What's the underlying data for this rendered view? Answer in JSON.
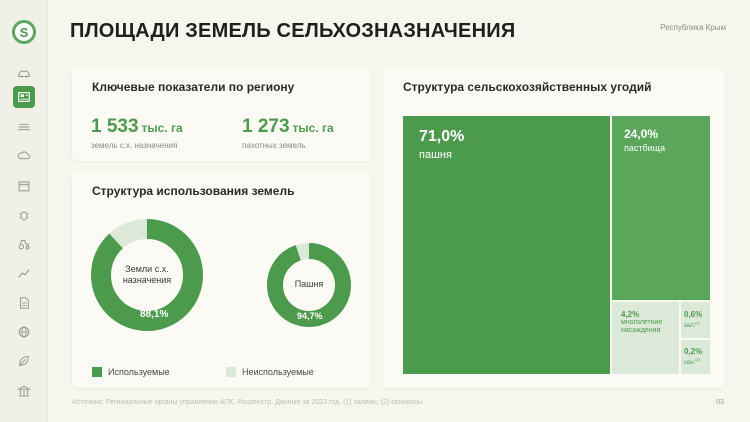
{
  "header": {
    "title": "ПЛОЩАДИ ЗЕМЕЛЬ СЕЛЬХОЗНАЗНАЧЕНИЯ",
    "region": "Республика Крым"
  },
  "sidebar": {
    "logo_letter": "S",
    "items": [
      {
        "icon": "car-icon"
      },
      {
        "icon": "dashboard-icon",
        "active": true
      },
      {
        "icon": "field-icon"
      },
      {
        "icon": "weather-icon"
      },
      {
        "icon": "calendar-icon"
      },
      {
        "icon": "bug-icon"
      },
      {
        "icon": "tractor-icon"
      },
      {
        "icon": "chart-icon"
      },
      {
        "icon": "document-icon"
      },
      {
        "icon": "globe-icon"
      },
      {
        "icon": "leaf-icon"
      },
      {
        "icon": "bank-icon"
      }
    ]
  },
  "kpi_card": {
    "title": "Ключевые показатели по региону",
    "items": [
      {
        "value": "1 533",
        "unit": "тыс. га",
        "label": "земель с.х. назначения"
      },
      {
        "value": "1 273",
        "unit": "тыс. га",
        "label": "пахотных земель"
      }
    ]
  },
  "land_use_card": {
    "title": "Структура использования земель",
    "donuts": [
      {
        "center_label": "Земли с.х. назначения",
        "percent_label": "88,1%",
        "value": 88.1
      },
      {
        "center_label": "Пашня",
        "percent_label": "94,7%",
        "value": 94.7
      }
    ],
    "legend": [
      {
        "label": "Используемые",
        "color": "#4c9b4c"
      },
      {
        "label": "Неиспользуемые",
        "color": "#dce9d9"
      }
    ]
  },
  "structure_card": {
    "title": "Структура сельскохозяйственных угодий",
    "tiles": [
      {
        "pct": "71,0%",
        "label": "пашня",
        "value": 71.0
      },
      {
        "pct": "24,0%",
        "label": "пастбища",
        "value": 24.0
      },
      {
        "pct": "4,2%",
        "label": "многолетние насаждения",
        "value": 4.2
      },
      {
        "pct": "0,6%",
        "label": "зал.",
        "sup": "(1)",
        "value": 0.6
      },
      {
        "pct": "0,2%",
        "label": "сен.",
        "sup": "(2)",
        "value": 0.2
      }
    ]
  },
  "colors": {
    "accent": "#4c9b4c",
    "pasture": "#5aa65a",
    "orchard": "#b8d7b2",
    "light": "#dce9d9",
    "background": "#f7f6ee"
  },
  "footer": {
    "note": "Источник: Региональные органы управления АПК, Росреестр. Данные за 2023 год. (1) залежь; (2) сенокосы",
    "page": "03"
  }
}
